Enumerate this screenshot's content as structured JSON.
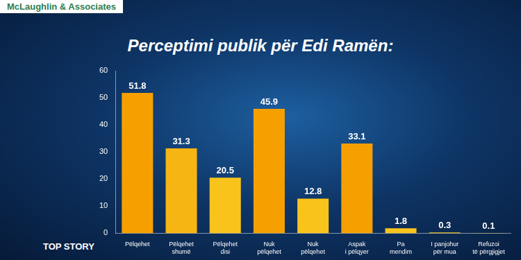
{
  "chart_data": {
    "type": "bar",
    "title": "Perceptimi publik për Edi Ramën:",
    "annotations": [
      "McLaughlin & Associates",
      "TOP STORY"
    ],
    "categories": [
      "Pëlqehet",
      "Pëlqehet\nshumë",
      "Pëlqehet\ndisi",
      "Nuk\npëlqehet",
      "Nuk\npëlqehet",
      "Aspak\ni pëlqyer",
      "Pa\nmendim",
      "I panjohur\npër mua",
      "Refuzoi\ntë përgjigjet"
    ],
    "values": [
      51.8,
      31.3,
      20.5,
      45.9,
      12.8,
      33.1,
      1.8,
      0.3,
      0.1
    ],
    "colors": [
      "#f5a000",
      "#f7b514",
      "#f8c41c",
      "#f5a000",
      "#f8c41c",
      "#f5a000",
      "#f8c41c",
      "#f8c41c",
      "#f8c41c"
    ],
    "ylim": [
      0,
      60
    ],
    "yticks": [
      0,
      10,
      20,
      30,
      40,
      50,
      60
    ],
    "grid": false,
    "data_labels": true
  }
}
